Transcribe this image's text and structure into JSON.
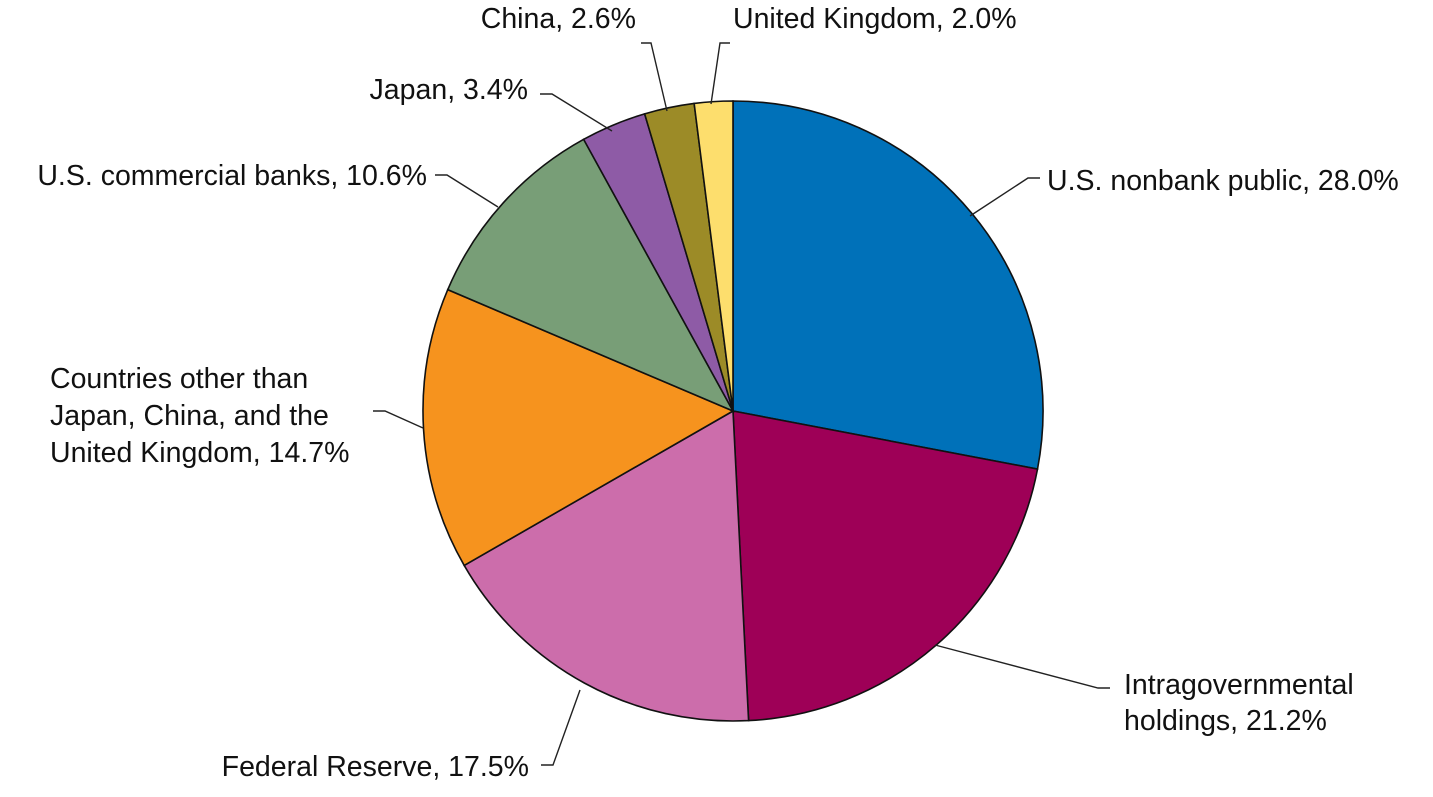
{
  "chart_data": {
    "type": "pie",
    "title": "",
    "start_angle_deg": 90,
    "direction": "clockwise",
    "slices": [
      {
        "label": "U.S. nonbank public",
        "value": 28.0,
        "color": "#0071B9",
        "text_lines": [
          "U.S. nonbank public, 28.0%"
        ]
      },
      {
        "label": "Intragovernmental holdings",
        "value": 21.2,
        "color": "#9E0057",
        "text_lines": [
          "Intragovernmental",
          "holdings, 21.2%"
        ]
      },
      {
        "label": "Federal Reserve",
        "value": 17.5,
        "color": "#CC6DAB",
        "text_lines": [
          "Federal Reserve, 17.5%"
        ]
      },
      {
        "label": "Countries other than Japan, China, and the United Kingdom",
        "value": 14.7,
        "color": "#F6931E",
        "text_lines": [
          "Countries other than",
          "Japan, China, and the",
          "United Kingdom, 14.7%"
        ]
      },
      {
        "label": "U.S. commercial banks",
        "value": 10.6,
        "color": "#789E77",
        "text_lines": [
          "U.S. commercial banks, 10.6%"
        ]
      },
      {
        "label": "Japan",
        "value": 3.4,
        "color": "#8E5BA6",
        "text_lines": [
          "Japan, 3.4%"
        ]
      },
      {
        "label": "China",
        "value": 2.6,
        "color": "#9C8B27",
        "text_lines": [
          "China, 2.6%"
        ]
      },
      {
        "label": "United Kingdom",
        "value": 2.0,
        "color": "#FDDE6D",
        "text_lines": [
          "United Kingdom, 2.0%"
        ]
      }
    ]
  }
}
